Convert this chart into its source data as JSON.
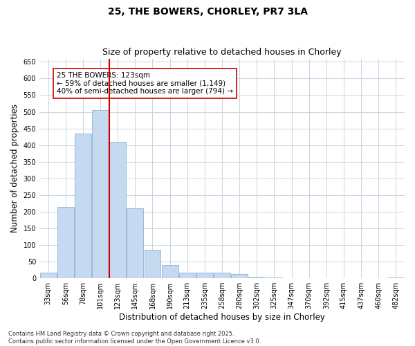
{
  "title1": "25, THE BOWERS, CHORLEY, PR7 3LA",
  "title2": "Size of property relative to detached houses in Chorley",
  "xlabel": "Distribution of detached houses by size in Chorley",
  "ylabel": "Number of detached properties",
  "categories": [
    "33sqm",
    "56sqm",
    "78sqm",
    "101sqm",
    "123sqm",
    "145sqm",
    "168sqm",
    "190sqm",
    "213sqm",
    "235sqm",
    "258sqm",
    "280sqm",
    "302sqm",
    "325sqm",
    "347sqm",
    "370sqm",
    "392sqm",
    "415sqm",
    "437sqm",
    "460sqm",
    "482sqm"
  ],
  "values": [
    18,
    215,
    435,
    505,
    410,
    210,
    85,
    40,
    18,
    17,
    18,
    12,
    5,
    2,
    1,
    0,
    0,
    0,
    0,
    0,
    2
  ],
  "bar_color": "#c5d9f1",
  "bar_edge_color": "#8ab4d8",
  "vline_color": "#cc0000",
  "annotation_text": "25 THE BOWERS: 123sqm\n← 59% of detached houses are smaller (1,149)\n40% of semi-detached houses are larger (794) →",
  "annotation_box_color": "#ffffff",
  "annotation_box_edge": "#cc0000",
  "ylim": [
    0,
    660
  ],
  "yticks": [
    0,
    50,
    100,
    150,
    200,
    250,
    300,
    350,
    400,
    450,
    500,
    550,
    600,
    650
  ],
  "bg_color": "#ffffff",
  "grid_color": "#c8d4e3",
  "footnote": "Contains HM Land Registry data © Crown copyright and database right 2025.\nContains public sector information licensed under the Open Government Licence v3.0.",
  "title_fontsize": 10,
  "subtitle_fontsize": 9,
  "tick_fontsize": 7,
  "label_fontsize": 8.5,
  "annot_fontsize": 7.5,
  "footnote_fontsize": 6
}
